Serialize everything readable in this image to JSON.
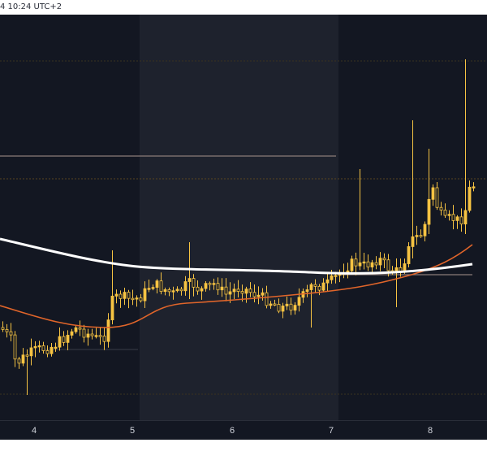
{
  "header": {
    "timestamp_text": "4 10:24 UTC+2"
  },
  "x_axis": {
    "ticks": [
      "4",
      "5",
      "6",
      "7",
      "8"
    ]
  },
  "colors": {
    "background": "#131722",
    "highlight_band": "#1e222d",
    "candle": "#f6c343",
    "ma_long": "#ffffff",
    "ma_short": "#e0652a",
    "level_line": "#8c7b79",
    "grid_dotted": "#4a4030"
  },
  "chart_data": {
    "type": "candlestick",
    "x_axis_labels": [
      "4",
      "5",
      "6",
      "7",
      "8"
    ],
    "moving_averages": [
      "long (white)",
      "short (orange)"
    ]
  }
}
